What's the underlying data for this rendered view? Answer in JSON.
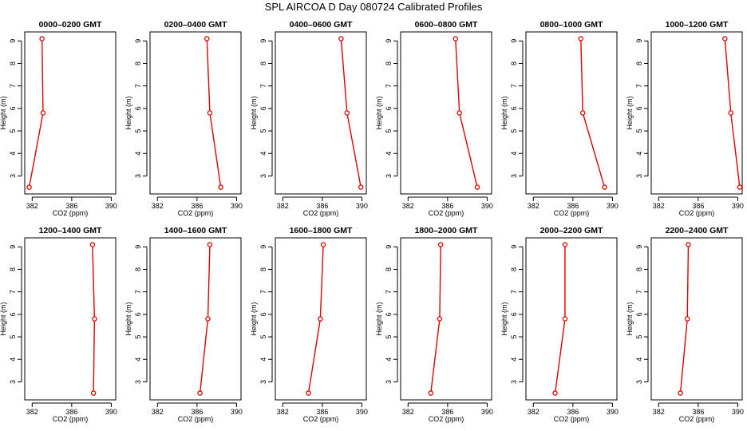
{
  "title": "SPL AIRCOA D  Day 080724  Calibrated Profiles",
  "line_color": "#e00000",
  "axis_color": "#000000",
  "chart_data": [
    {
      "type": "line",
      "title": "0000–0200 GMT",
      "xlabel": "CO2 (ppm)",
      "ylabel": "Height (m)",
      "xlim": [
        381.25,
        390.45
      ],
      "ylim": [
        2.2,
        9.4
      ],
      "xticks": [
        382,
        386,
        390
      ],
      "yticks": [
        3,
        4,
        5,
        6,
        7,
        8,
        9
      ],
      "series": [
        {
          "name": "profile",
          "x": [
            383.0,
            383.1,
            381.7
          ],
          "y": [
            9.1,
            5.8,
            2.5
          ]
        }
      ]
    },
    {
      "type": "line",
      "title": "0200–0400 GMT",
      "xlabel": "CO2 (ppm)",
      "ylabel": "Height (m)",
      "xlim": [
        381.25,
        390.45
      ],
      "ylim": [
        2.2,
        9.4
      ],
      "xticks": [
        382,
        386,
        390
      ],
      "yticks": [
        3,
        4,
        5,
        6,
        7,
        8,
        9
      ],
      "series": [
        {
          "name": "profile",
          "x": [
            387.0,
            387.3,
            388.4
          ],
          "y": [
            9.1,
            5.8,
            2.5
          ]
        }
      ]
    },
    {
      "type": "line",
      "title": "0400–0600 GMT",
      "xlabel": "CO2 (ppm)",
      "ylabel": "Height (m)",
      "xlim": [
        381.25,
        390.45
      ],
      "ylim": [
        2.2,
        9.4
      ],
      "xticks": [
        382,
        386,
        390
      ],
      "yticks": [
        3,
        4,
        5,
        6,
        7,
        8,
        9
      ],
      "series": [
        {
          "name": "profile",
          "x": [
            387.9,
            388.5,
            389.9
          ],
          "y": [
            9.1,
            5.8,
            2.5
          ]
        }
      ]
    },
    {
      "type": "line",
      "title": "0600–0800 GMT",
      "xlabel": "CO2 (ppm)",
      "ylabel": "Height (m)",
      "xlim": [
        381.25,
        390.45
      ],
      "ylim": [
        2.2,
        9.4
      ],
      "xticks": [
        382,
        386,
        390
      ],
      "yticks": [
        3,
        4,
        5,
        6,
        7,
        8,
        9
      ],
      "series": [
        {
          "name": "profile",
          "x": [
            386.8,
            387.2,
            389.0
          ],
          "y": [
            9.1,
            5.8,
            2.5
          ]
        }
      ]
    },
    {
      "type": "line",
      "title": "0800–1000 GMT",
      "xlabel": "CO2 (ppm)",
      "ylabel": "Height (m)",
      "xlim": [
        381.25,
        390.45
      ],
      "ylim": [
        2.2,
        9.4
      ],
      "xticks": [
        382,
        386,
        390
      ],
      "yticks": [
        3,
        4,
        5,
        6,
        7,
        8,
        9
      ],
      "series": [
        {
          "name": "profile",
          "x": [
            386.8,
            387.0,
            389.2
          ],
          "y": [
            9.1,
            5.8,
            2.5
          ]
        }
      ]
    },
    {
      "type": "line",
      "title": "1000–1200 GMT",
      "xlabel": "CO2 (ppm)",
      "ylabel": "Height (m)",
      "xlim": [
        381.25,
        390.45
      ],
      "ylim": [
        2.2,
        9.4
      ],
      "xticks": [
        382,
        386,
        390
      ],
      "yticks": [
        3,
        4,
        5,
        6,
        7,
        8,
        9
      ],
      "series": [
        {
          "name": "profile",
          "x": [
            388.7,
            389.3,
            390.2
          ],
          "y": [
            9.1,
            5.8,
            2.5
          ]
        }
      ]
    },
    {
      "type": "line",
      "title": "1200–1400 GMT",
      "xlabel": "CO2 (ppm)",
      "ylabel": "Height (m)",
      "xlim": [
        381.25,
        390.45
      ],
      "ylim": [
        2.2,
        9.4
      ],
      "xticks": [
        382,
        386,
        390
      ],
      "yticks": [
        3,
        4,
        5,
        6,
        7,
        8,
        9
      ],
      "series": [
        {
          "name": "profile",
          "x": [
            388.1,
            388.3,
            388.2
          ],
          "y": [
            9.1,
            5.8,
            2.5
          ]
        }
      ]
    },
    {
      "type": "line",
      "title": "1400–1600 GMT",
      "xlabel": "CO2 (ppm)",
      "ylabel": "Height (m)",
      "xlim": [
        381.25,
        390.45
      ],
      "ylim": [
        2.2,
        9.4
      ],
      "xticks": [
        382,
        386,
        390
      ],
      "yticks": [
        3,
        4,
        5,
        6,
        7,
        8,
        9
      ],
      "series": [
        {
          "name": "profile",
          "x": [
            387.3,
            387.1,
            386.3
          ],
          "y": [
            9.1,
            5.8,
            2.5
          ]
        }
      ]
    },
    {
      "type": "line",
      "title": "1600–1800 GMT",
      "xlabel": "CO2 (ppm)",
      "ylabel": "Height (m)",
      "xlim": [
        381.25,
        390.45
      ],
      "ylim": [
        2.2,
        9.4
      ],
      "xticks": [
        382,
        386,
        390
      ],
      "yticks": [
        3,
        4,
        5,
        6,
        7,
        8,
        9
      ],
      "series": [
        {
          "name": "profile",
          "x": [
            386.1,
            385.8,
            384.6
          ],
          "y": [
            9.1,
            5.8,
            2.5
          ]
        }
      ]
    },
    {
      "type": "line",
      "title": "1800–2000 GMT",
      "xlabel": "CO2 (ppm)",
      "ylabel": "Height (m)",
      "xlim": [
        381.25,
        390.45
      ],
      "ylim": [
        2.2,
        9.4
      ],
      "xticks": [
        382,
        386,
        390
      ],
      "yticks": [
        3,
        4,
        5,
        6,
        7,
        8,
        9
      ],
      "series": [
        {
          "name": "profile",
          "x": [
            385.3,
            385.2,
            384.3
          ],
          "y": [
            9.1,
            5.8,
            2.5
          ]
        }
      ]
    },
    {
      "type": "line",
      "title": "2000–2200 GMT",
      "xlabel": "CO2 (ppm)",
      "ylabel": "Height (m)",
      "xlim": [
        381.25,
        390.45
      ],
      "ylim": [
        2.2,
        9.4
      ],
      "xticks": [
        382,
        386,
        390
      ],
      "yticks": [
        3,
        4,
        5,
        6,
        7,
        8,
        9
      ],
      "series": [
        {
          "name": "profile",
          "x": [
            385.2,
            385.2,
            384.2
          ],
          "y": [
            9.1,
            5.8,
            2.5
          ]
        }
      ]
    },
    {
      "type": "line",
      "title": "2200–2400 GMT",
      "xlabel": "CO2 (ppm)",
      "ylabel": "Height (m)",
      "xlim": [
        381.25,
        390.45
      ],
      "ylim": [
        2.2,
        9.4
      ],
      "xticks": [
        382,
        386,
        390
      ],
      "yticks": [
        3,
        4,
        5,
        6,
        7,
        8,
        9
      ],
      "series": [
        {
          "name": "profile",
          "x": [
            385.0,
            384.9,
            384.2
          ],
          "y": [
            9.1,
            5.8,
            2.5
          ]
        }
      ]
    }
  ]
}
